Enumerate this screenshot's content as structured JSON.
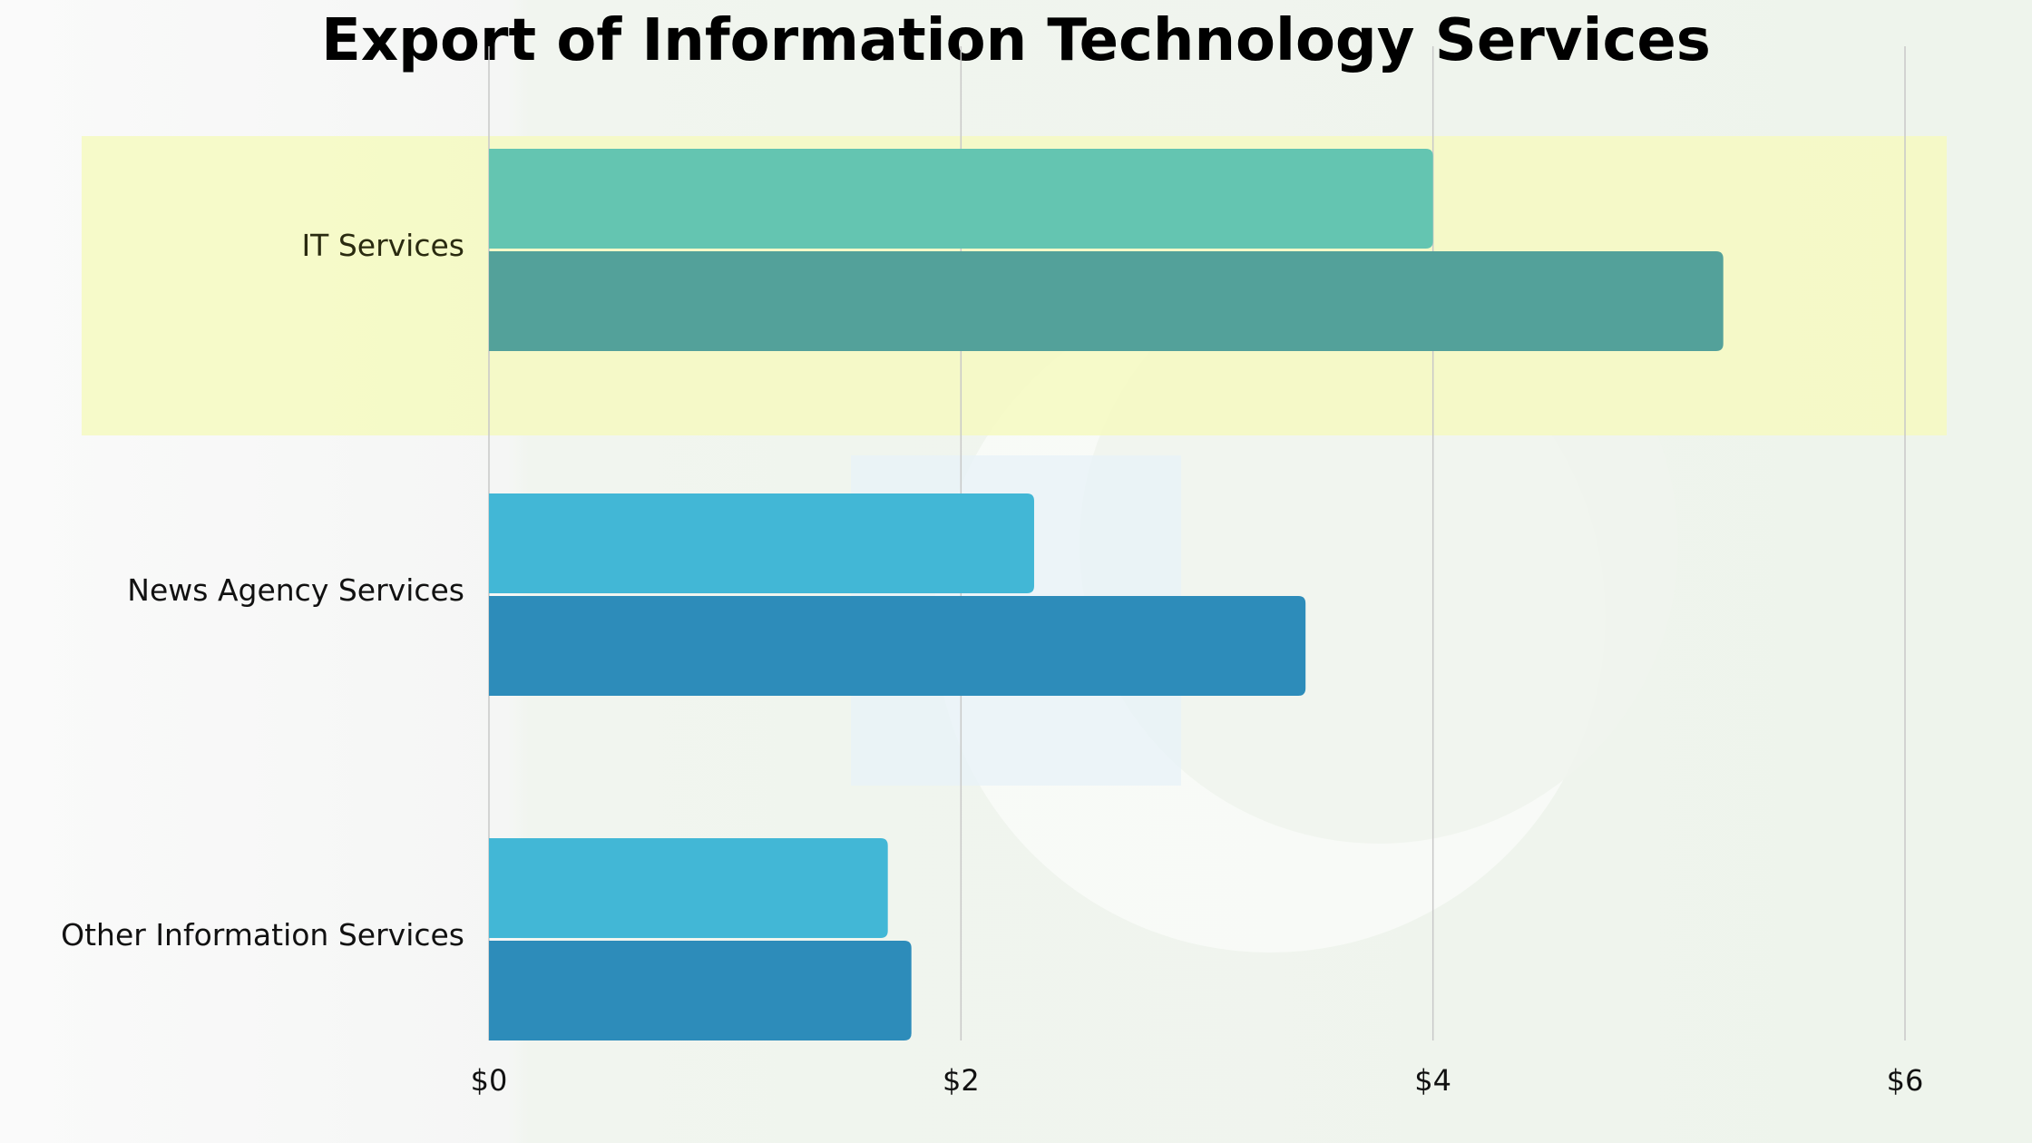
{
  "chart_data": {
    "type": "bar",
    "orientation": "horizontal",
    "title": "Export of Information Technology Services",
    "categories": [
      "IT Services",
      "News Agency Services",
      "Other Information Services"
    ],
    "series": [
      {
        "values": [
          4.0,
          2.31,
          1.69
        ]
      },
      {
        "values": [
          5.23,
          3.46,
          1.79
        ]
      }
    ],
    "bar_colors": [
      [
        "#64c5b1",
        "#53a19a"
      ],
      [
        "#42b7d6",
        "#2d8cba"
      ],
      [
        "#42b7d6",
        "#2d8cba"
      ]
    ],
    "highlighted_category": "IT Services",
    "highlight_color": "#f5f9c3",
    "xlim": [
      0,
      6
    ],
    "x_ticks": [
      0,
      2,
      4,
      6
    ],
    "x_tick_labels": [
      "$0",
      "$2",
      "$4",
      "$6"
    ],
    "grid": true,
    "xlabel": "",
    "ylabel": ""
  }
}
